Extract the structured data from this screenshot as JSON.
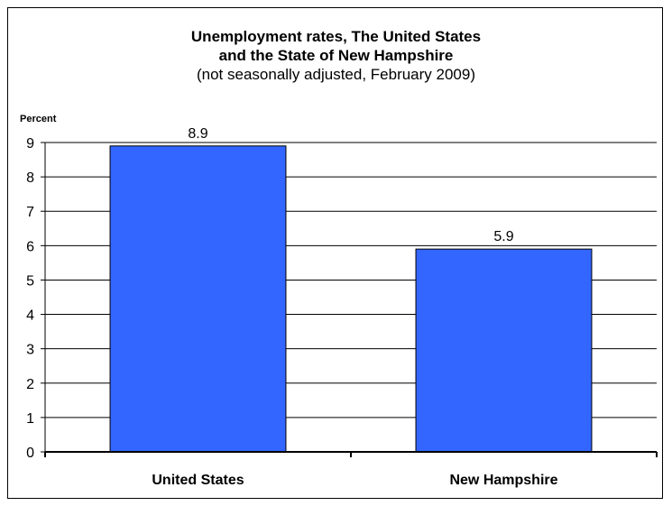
{
  "chart_data": {
    "type": "bar",
    "title": "Unemployment rates, The United States and the State of New Hampshire",
    "title_lines": [
      "Unemployment rates, The United States",
      "and the State of New Hampshire"
    ],
    "subtitle": "(not seasonally adjusted, February 2009)",
    "ylabel": "Percent",
    "xlabel": "",
    "categories": [
      "United States",
      "New Hampshire"
    ],
    "values": [
      8.9,
      5.9
    ],
    "data_labels": [
      "8.9",
      "5.9"
    ],
    "ylim": [
      0,
      9
    ],
    "yticks": [
      0,
      1,
      2,
      3,
      4,
      5,
      6,
      7,
      8,
      9
    ],
    "grid": true,
    "bar_color": "#3366FF",
    "legend": "none"
  }
}
